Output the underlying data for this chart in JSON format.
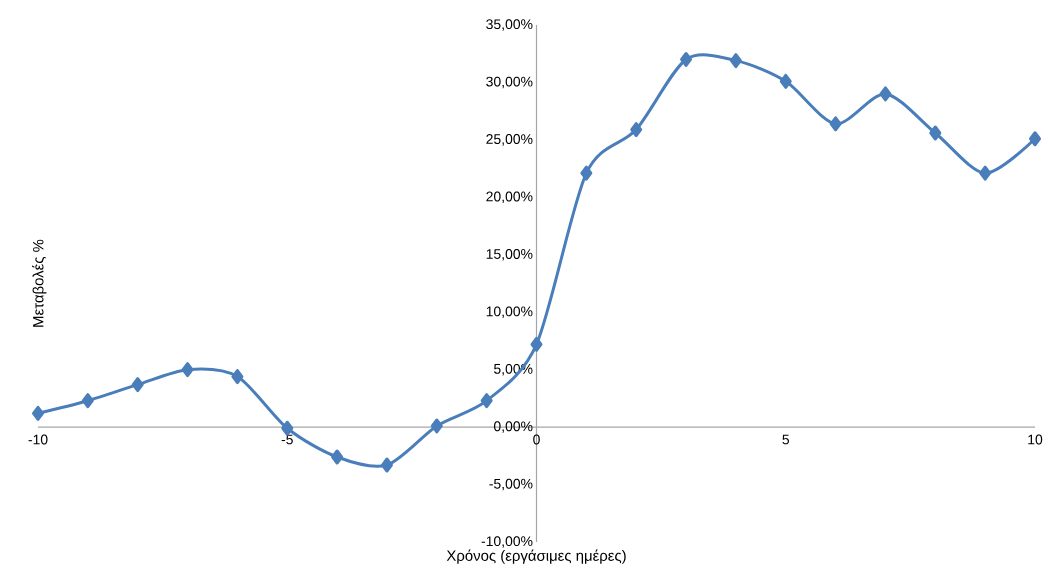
{
  "chart_data": {
    "type": "line",
    "xlabel": "Χρόνος (εργάσιμες ημέρες)",
    "ylabel": "Μεταβολές %",
    "x": [
      -10,
      -9,
      -8,
      -7,
      -6,
      -5,
      -4,
      -3,
      -2,
      -1,
      0,
      1,
      2,
      3,
      4,
      5,
      6,
      7,
      8,
      9,
      10
    ],
    "series": [
      {
        "color": "#4a7ebb",
        "values": [
          1.2,
          2.3,
          3.7,
          5.0,
          4.4,
          -0.1,
          -2.6,
          -3.3,
          0.1,
          2.3,
          7.2,
          22.1,
          25.9,
          32.0,
          31.9,
          30.1,
          26.4,
          29.0,
          25.6,
          22.1,
          25.1
        ]
      }
    ],
    "xlim": [
      -10,
      10
    ],
    "xticks": [
      -10,
      -5,
      0,
      5,
      10
    ],
    "ylim": [
      -10,
      35
    ],
    "yticks": [
      {
        "value": -10,
        "label": "-10,00%"
      },
      {
        "value": -5,
        "label": "-5,00%"
      },
      {
        "value": 0,
        "label": "0,00%"
      },
      {
        "value": 5,
        "label": "5,00%"
      },
      {
        "value": 10,
        "label": "10,00%"
      },
      {
        "value": 15,
        "label": "15,00%"
      },
      {
        "value": 20,
        "label": "20,00%"
      },
      {
        "value": 25,
        "label": "25,00%"
      },
      {
        "value": 30,
        "label": "30,00%"
      },
      {
        "value": 35,
        "label": "35,00%"
      }
    ],
    "marker": "diamond",
    "line_style": "solid",
    "grid": false,
    "legend": false
  }
}
